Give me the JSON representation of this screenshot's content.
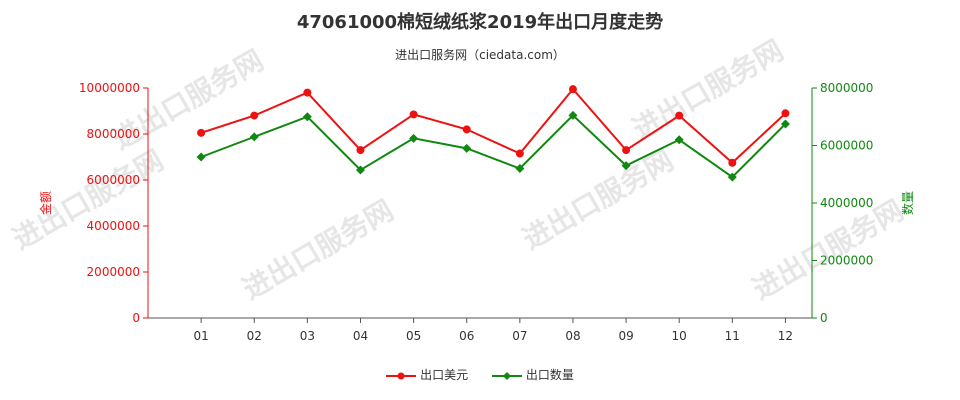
{
  "title": "47061000棉短绒纸浆2019年出口月度走势",
  "subtitle": "进出口服务网（ciedata.com）",
  "watermark": "进出口服务网",
  "colors": {
    "amount": "#ee1111",
    "quantity": "#118811",
    "axis": "#555555"
  },
  "chart_data": {
    "type": "line",
    "categories": [
      "01",
      "02",
      "03",
      "04",
      "05",
      "06",
      "07",
      "08",
      "09",
      "10",
      "11",
      "12"
    ],
    "series": [
      {
        "name": "出口美元",
        "axis": "left",
        "values": [
          8050000,
          8800000,
          9800000,
          7300000,
          8850000,
          8200000,
          7150000,
          9950000,
          7300000,
          8800000,
          6750000,
          8900000
        ]
      },
      {
        "name": "出口数量",
        "axis": "right",
        "values": [
          5600000,
          6300000,
          7000000,
          5150000,
          6250000,
          5900000,
          5200000,
          7050000,
          5300000,
          6200000,
          4900000,
          6750000
        ]
      }
    ],
    "y_left": {
      "label": "金额",
      "min": 0,
      "max": 10000000,
      "ticks": [
        "0",
        "2000000",
        "4000000",
        "6000000",
        "8000000",
        "10000000"
      ]
    },
    "y_right": {
      "label": "数量",
      "min": 0,
      "max": 8000000,
      "ticks": [
        "0",
        "2000000",
        "4000000",
        "6000000",
        "8000000"
      ]
    },
    "legend_position": "bottom"
  }
}
